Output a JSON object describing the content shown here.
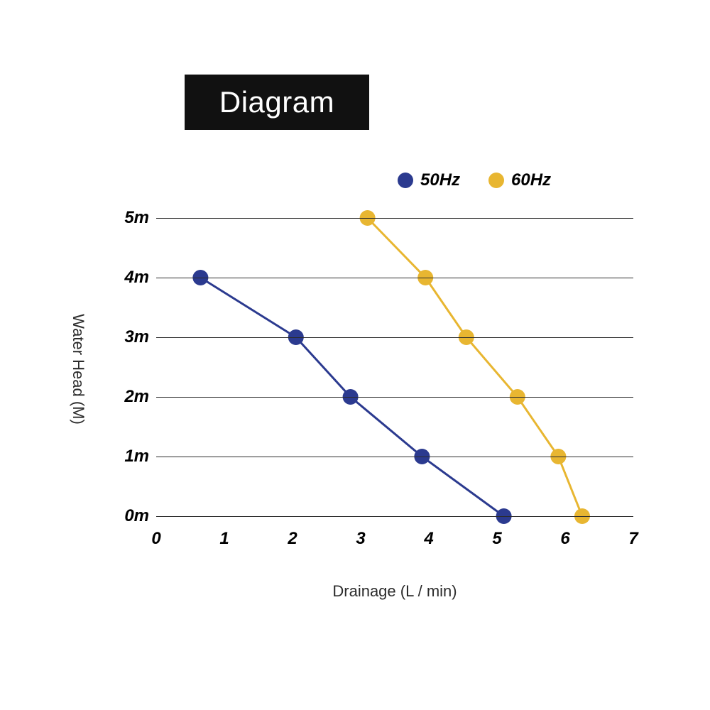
{
  "title": {
    "text": "Diagram",
    "bg_color": "#111111",
    "text_color": "#ffffff",
    "fontsize": 42
  },
  "legend": {
    "items": [
      {
        "label": "50Hz",
        "color": "#2b3a8f"
      },
      {
        "label": "60Hz",
        "color": "#e8b631"
      }
    ],
    "fontsize": 24
  },
  "chart": {
    "type": "line",
    "background_color": "#ffffff",
    "grid_color": "#2b2b2b",
    "x_axis": {
      "label": "Drainage (L / min)",
      "min": 0,
      "max": 7,
      "ticks": [
        0,
        1,
        2,
        3,
        4,
        5,
        6,
        7
      ],
      "tick_fontsize": 24,
      "label_fontsize": 22
    },
    "y_axis": {
      "label": "Water Head (M)",
      "min": 0,
      "max": 5,
      "ticks": [
        0,
        1,
        2,
        3,
        4,
        5
      ],
      "tick_suffix": "m",
      "tick_fontsize": 24,
      "label_fontsize": 22
    },
    "series": [
      {
        "name": "50Hz",
        "color": "#2b3a8f",
        "line_width": 3,
        "marker_radius": 11,
        "data": [
          {
            "x": 5.1,
            "y": 0
          },
          {
            "x": 3.9,
            "y": 1
          },
          {
            "x": 2.85,
            "y": 2
          },
          {
            "x": 2.05,
            "y": 3
          },
          {
            "x": 0.65,
            "y": 4
          }
        ]
      },
      {
        "name": "60Hz",
        "color": "#e8b631",
        "line_width": 3,
        "marker_radius": 11,
        "data": [
          {
            "x": 6.25,
            "y": 0
          },
          {
            "x": 5.9,
            "y": 1
          },
          {
            "x": 5.3,
            "y": 2
          },
          {
            "x": 4.55,
            "y": 3
          },
          {
            "x": 3.95,
            "y": 4
          },
          {
            "x": 3.1,
            "y": 5
          }
        ]
      }
    ]
  }
}
